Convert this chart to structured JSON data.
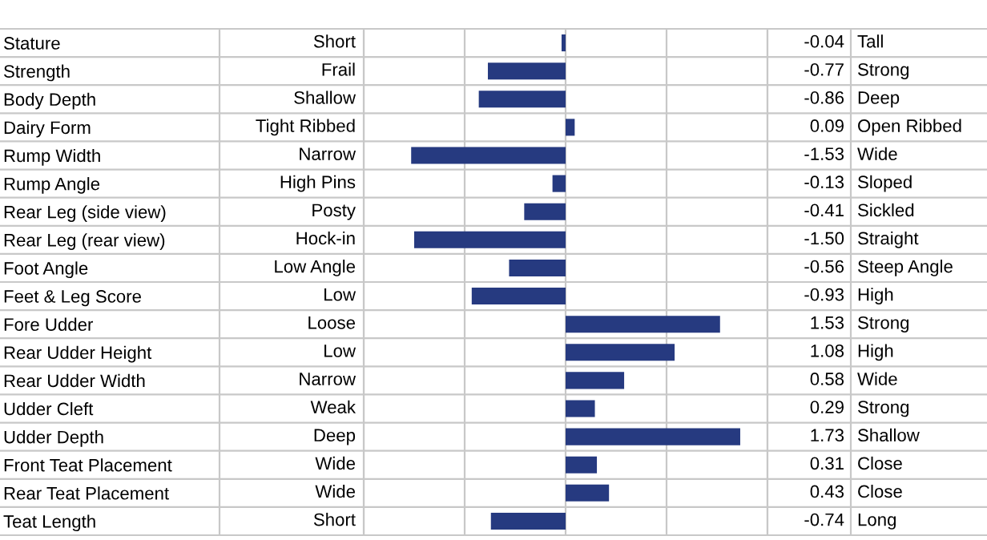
{
  "chart_data": {
    "type": "bar",
    "orientation": "horizontal",
    "categories": [
      "Stature",
      "Strength",
      "Body Depth",
      "Dairy Form",
      "Rump Width",
      "Rump Angle",
      "Rear Leg (side view)",
      "Rear Leg (rear view)",
      "Foot Angle",
      "Feet & Leg Score",
      "Fore Udder",
      "Rear Udder Height",
      "Rear Udder Width",
      "Udder Cleft",
      "Udder Depth",
      "Front Teat Placement",
      "Rear Teat Placement",
      "Teat Length"
    ],
    "values": [
      -0.04,
      -0.77,
      -0.86,
      0.09,
      -1.53,
      -0.13,
      -0.41,
      -1.5,
      -0.56,
      -0.93,
      1.53,
      1.08,
      0.58,
      0.29,
      1.73,
      0.31,
      0.43,
      -0.74
    ],
    "value_labels": [
      "-0.04",
      "-0.77",
      "-0.86",
      "0.09",
      "-1.53",
      "-0.13",
      "-0.41",
      "-1.50",
      "-0.56",
      "-0.93",
      "1.53",
      "1.08",
      "0.58",
      "0.29",
      "1.73",
      "0.31",
      "0.43",
      "-0.74"
    ],
    "color": "#263a80",
    "xlim": [
      -2,
      2
    ],
    "xticks": [
      {
        "value": -2,
        "label": null
      },
      {
        "value": -1,
        "label": null
      },
      {
        "value": 0,
        "label": null
      },
      {
        "value": 1,
        "label": null
      },
      {
        "value": 2,
        "label": null
      }
    ],
    "grid": "x",
    "tick_labels": "y",
    "annotations": [
      "Short",
      "Tall",
      "Frail",
      "Strong",
      "Shallow",
      "Deep",
      "Tight Ribbed",
      "Open Ribbed",
      "Narrow",
      "Wide",
      "High Pins",
      "Sloped",
      "Posty",
      "Sickled",
      "Hock-in",
      "Straight",
      "Low Angle",
      "Steep Angle",
      "Low",
      "High",
      "Loose",
      "Strong",
      "Low",
      "High",
      "Narrow",
      "Wide",
      "Weak",
      "Strong",
      "Deep",
      "Shallow",
      "Wide",
      "Close",
      "Wide",
      "Close",
      "Short",
      "Long"
    ]
  }
}
